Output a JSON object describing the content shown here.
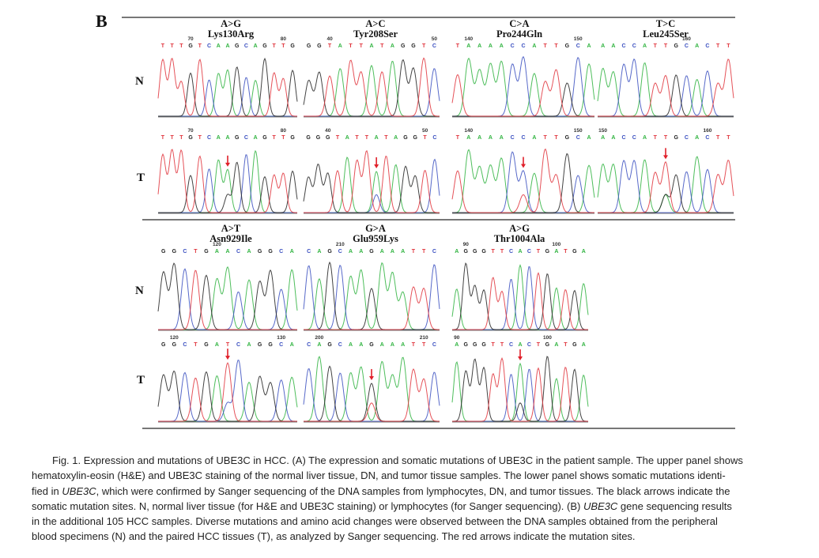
{
  "figure": {
    "panel_label": "B",
    "row_labels": {
      "normal": "N",
      "tumor": "T"
    },
    "base_colors": {
      "A": "#2fb33f",
      "C": "#3a4fc0",
      "G": "#222222",
      "T": "#e0343c"
    },
    "arrow_color": "#e0202a",
    "mutations": [
      {
        "change": "A>G",
        "protein": "Lys130Arg",
        "N": {
          "seq": "TTTGTCAAGCAGTTG",
          "ticks": [
            {
              "label": "70",
              "index": 3
            },
            {
              "label": "80",
              "index": 13
            }
          ]
        },
        "T": {
          "seq": "TTTGTCAAGCAGTTG",
          "ticks": [
            {
              "label": "70",
              "index": 3
            },
            {
              "label": "80",
              "index": 13
            }
          ],
          "arrow_index": 7
        }
      },
      {
        "change": "A>C",
        "protein": "Tyr208Ser",
        "N": {
          "seq": "GGTATTATAGGTC",
          "ticks": [
            {
              "label": "40",
              "index": 2
            },
            {
              "label": "50",
              "index": 12
            }
          ]
        },
        "T": {
          "seq": "GGGTATTATAGGTC",
          "ticks": [
            {
              "label": "40",
              "index": 2
            },
            {
              "label": "50",
              "index": 12
            }
          ],
          "arrow_index": 7
        }
      },
      {
        "change": "C>A",
        "protein": "Pro244Gln",
        "N": {
          "seq": "TAAAACCATTGCA",
          "ticks": [
            {
              "label": "140",
              "index": 1
            },
            {
              "label": "150",
              "index": 11
            }
          ]
        },
        "T": {
          "seq": "TAAAACCATTGCA",
          "ticks": [
            {
              "label": "140",
              "index": 1
            },
            {
              "label": "150",
              "index": 11
            }
          ],
          "arrow_index": 6
        }
      },
      {
        "change": "T>C",
        "protein": "Leu245Ser",
        "N": {
          "seq": "AACCATTGCACTT",
          "ticks": [
            {
              "label": "160",
              "index": 8
            }
          ]
        },
        "T": {
          "seq": "AACCATTGCACTT",
          "ticks": [
            {
              "label": "150",
              "index": 0
            },
            {
              "label": "160",
              "index": 10
            }
          ],
          "arrow_index": 6
        }
      },
      {
        "change": "A>T",
        "protein": "Asn929Ile",
        "N": {
          "seq": "GGCTGAACAGGCA",
          "ticks": [
            {
              "label": "120",
              "index": 5
            }
          ]
        },
        "T": {
          "seq": "GGCTGATCAGGCA",
          "ticks": [
            {
              "label": "120",
              "index": 1
            },
            {
              "label": "130",
              "index": 11
            }
          ],
          "arrow_index": 6
        }
      },
      {
        "change": "G>A",
        "protein": "Glu959Lys",
        "N": {
          "seq": "CAGCAAGAAATTC",
          "ticks": [
            {
              "label": "210",
              "index": 3
            }
          ]
        },
        "T": {
          "seq": "CAGCAAGAAATTC",
          "ticks": [
            {
              "label": "200",
              "index": 1
            },
            {
              "label": "210",
              "index": 11
            }
          ],
          "arrow_index": 6
        }
      },
      {
        "change": "A>G",
        "protein": "Thr1004Ala",
        "N": {
          "seq": "AGGGTTCACTGATGA",
          "ticks": [
            {
              "label": "90",
              "index": 1
            },
            {
              "label": "100",
              "index": 11
            }
          ]
        },
        "T": {
          "seq": "AGGGTTCACTGATGA",
          "ticks": [
            {
              "label": "90",
              "index": 0
            },
            {
              "label": "100",
              "index": 10
            }
          ],
          "arrow_index": 7
        }
      }
    ]
  },
  "caption": {
    "line1": "Fig. 1. Expression and mutations of UBE3C in HCC. (A) The expression and somatic mutations of UBE3C in the patient sample. The upper panel shows",
    "line2": "hematoxylin-eosin (H&E) and UBE3C staining of the normal liver tissue, DN, and tumor tissue samples. The lower panel shows somatic mutations identi-",
    "line3_a": "fied in ",
    "line3_gene": "UBE3C",
    "line3_b": ", which were confirmed by Sanger sequencing of the DNA samples from lymphocytes, DN, and tumor tissues. The black arrows indicate the",
    "line4_a": "somatic mutation sites. N, normal liver tissue (for H&E and UBE3C staining) or lymphocytes (for Sanger sequencing). (B) ",
    "line4_gene": "UBE3C",
    "line4_b": " gene sequencing results",
    "line5": "in the additional 105 HCC samples. Diverse mutations and amino acid changes were observed between the DNA samples obtained from the peripheral",
    "line6": "blood specimens (N) and the paired HCC tissues (T), as analyzed by Sanger sequencing. The red arrows indicate the mutation sites."
  }
}
